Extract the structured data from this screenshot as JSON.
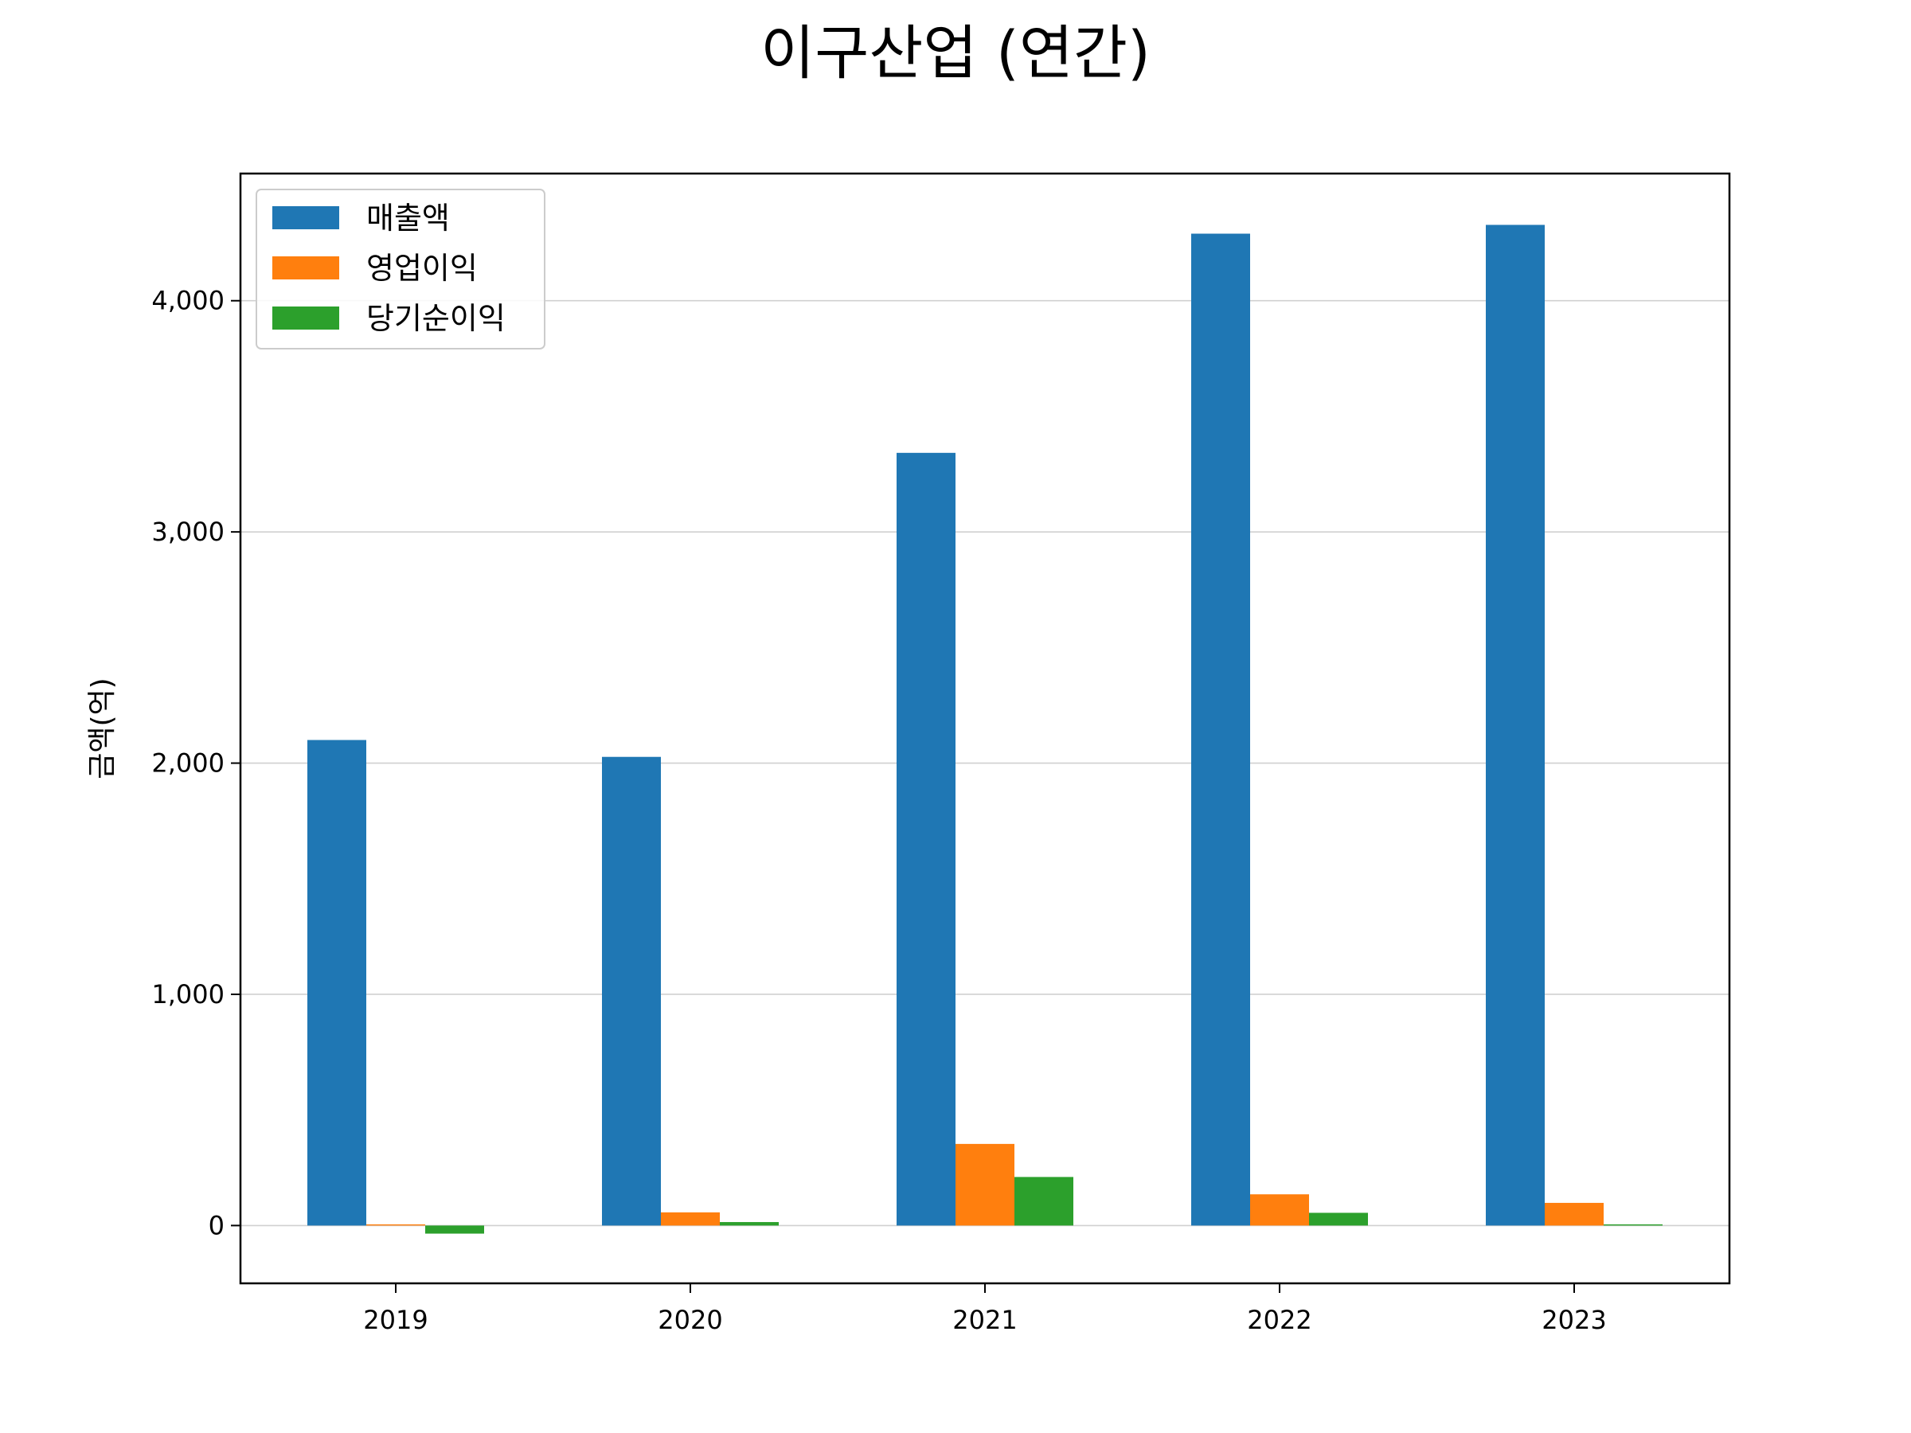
{
  "chart_data": {
    "type": "bar",
    "title": "이구산업 (연간)",
    "xlabel": "",
    "ylabel": "금액(억)",
    "categories": [
      "2019",
      "2020",
      "2021",
      "2022",
      "2023"
    ],
    "series": [
      {
        "name": "매출액",
        "color": "#1f77b4",
        "values": [
          2100,
          2027,
          3342,
          4290,
          4328
        ]
      },
      {
        "name": "영업이익",
        "color": "#ff7f0e",
        "values": [
          5,
          57,
          353,
          135,
          98
        ]
      },
      {
        "name": "당기순이익",
        "color": "#2ca02c",
        "values": [
          -35,
          15,
          210,
          55,
          5
        ]
      }
    ],
    "ylim": [
      -250,
      4550
    ],
    "yticks": [
      0,
      1000,
      2000,
      3000,
      4000
    ],
    "ytick_labels": [
      "0",
      "1,000",
      "2,000",
      "3,000",
      "4,000"
    ],
    "grid": "y",
    "legend_position": "upper-left"
  }
}
